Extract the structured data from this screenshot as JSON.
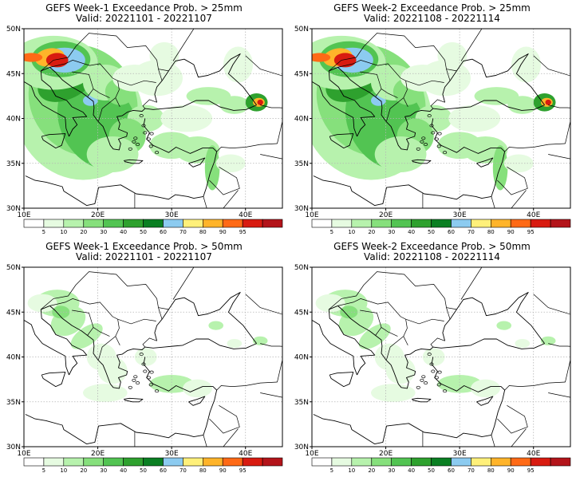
{
  "panels": [
    {
      "title": "GEFS Week-1 Exceedance Prob. > 25mm",
      "valid": "Valid: 20221101 - 20221107",
      "intensity": "high"
    },
    {
      "title": "GEFS Week-2 Exceedance Prob. > 25mm",
      "valid": "Valid: 20221108 - 20221114",
      "intensity": "high"
    },
    {
      "title": "GEFS Week-1 Exceedance Prob. > 50mm",
      "valid": "Valid: 20221101 - 20221107",
      "intensity": "low"
    },
    {
      "title": "GEFS Week-2 Exceedance Prob. > 50mm",
      "valid": "Valid: 20221108 - 20221114",
      "intensity": "low"
    }
  ],
  "axes": {
    "lat_labels": [
      "50N",
      "45N",
      "40N",
      "35N",
      "30N"
    ],
    "lon_labels": [
      "10E",
      "20E",
      "30E",
      "40E"
    ]
  },
  "colorbar": {
    "labels": [
      "5",
      "10",
      "20",
      "30",
      "40",
      "50",
      "60",
      "70",
      "80",
      "90",
      "95"
    ],
    "colors": [
      "#ffffff",
      "#e6fbe1",
      "#b7f2ad",
      "#86e07c",
      "#52c452",
      "#2ea12e",
      "#0a7f22",
      "#8ccbf0",
      "#fff07a",
      "#ffb42a",
      "#ff6a16",
      "#d81b10",
      "#b3141a"
    ]
  },
  "colors": {
    "land_outline": "#000000",
    "grid": "#b5b5b5"
  }
}
